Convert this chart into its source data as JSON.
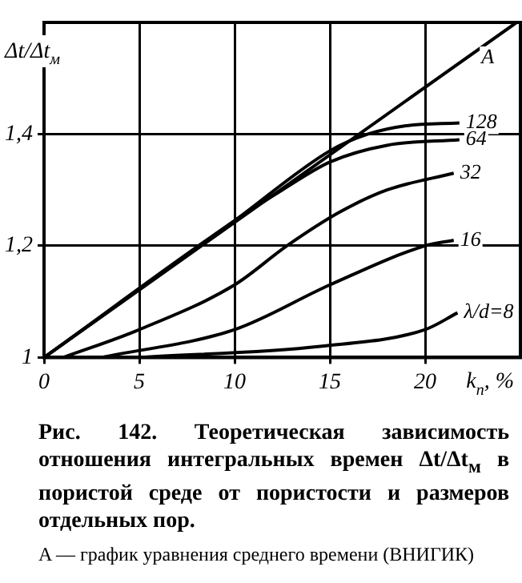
{
  "chart_data": {
    "type": "line",
    "xlabel": "k$_{п}$, %",
    "ylabel": "Δt/Δt$_{м}$",
    "xlim": [
      0,
      25
    ],
    "ylim": [
      1,
      1.6
    ],
    "xticks": [
      0,
      5,
      10,
      15,
      20
    ],
    "yticks": [
      1,
      {
        "value": 1.2,
        "label": "1,2"
      },
      {
        "value": 1.4,
        "label": "1,4"
      }
    ],
    "grid": true,
    "legend": false,
    "marker": "none",
    "line_style": "solid",
    "series": [
      {
        "name": "A",
        "color": "#000000",
        "x": [
          0,
          24.8
        ],
        "values": [
          1,
          1.6
        ]
      },
      {
        "name": "128",
        "color": "#000000",
        "x": [
          0,
          10,
          15,
          17,
          19,
          21.8
        ],
        "values": [
          1,
          1.245,
          1.37,
          1.4,
          1.415,
          1.42
        ]
      },
      {
        "name": "64",
        "color": "#000000",
        "x": [
          0,
          10,
          12.5,
          15,
          18,
          21.8
        ],
        "values": [
          1,
          1.245,
          1.3,
          1.35,
          1.38,
          1.39
        ]
      },
      {
        "name": "32",
        "color": "#000000",
        "x": [
          1,
          5,
          10,
          12.75,
          15.5,
          18,
          21.5
        ],
        "values": [
          1,
          1.05,
          1.13,
          1.2,
          1.26,
          1.3,
          1.33
        ]
      },
      {
        "name": "16",
        "color": "#000000",
        "x": [
          3,
          10,
          15,
          20,
          21.5
        ],
        "values": [
          1,
          1.05,
          1.13,
          1.2,
          1.21
        ]
      },
      {
        "name": "λ/d=8",
        "color": "#000000",
        "x": [
          5,
          14.5,
          20,
          21.7
        ],
        "values": [
          1,
          1.02,
          1.05,
          1.08
        ]
      }
    ],
    "annotations": [
      "Рис. 142. Теоретическая зависимость отношения интегральных времен Δt/Δt$_{м}$ в пористой среде от пористости и размеров отдельных пор.",
      "A — график уравнения среднего времени (ВНИГИК)"
    ]
  }
}
